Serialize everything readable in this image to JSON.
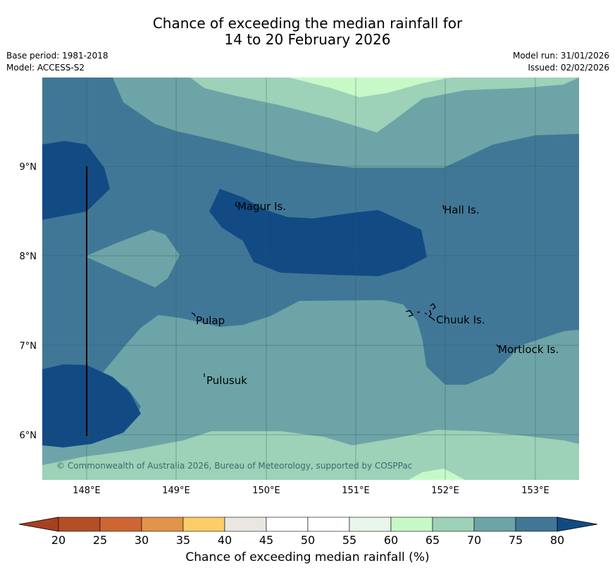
{
  "header": {
    "title_line1": "Chance of exceeding the median rainfall for",
    "title_line2": "14 to 20 February 2026",
    "base_period": "Base period: 1981-2018",
    "model": "Model: ACCESS-S2",
    "model_run": "Model run: 31/01/2026",
    "issued": "Issued: 02/02/2026"
  },
  "map": {
    "lon_ticks": [
      "148°E",
      "149°E",
      "150°E",
      "151°E",
      "152°E",
      "153°E"
    ],
    "lat_ticks": [
      "9°N",
      "8°N",
      "7°N",
      "6°N"
    ],
    "places": {
      "magur": "Magur Is.",
      "hall": "Hall Is.",
      "pulap": "Pulap",
      "chuuk": "Chuuk Is.",
      "pulusuk": "Pulusuk",
      "mortlock": "Mortlock Is."
    },
    "copyright": "© Commonwealth of Australia 2026, Bureau of Meteorology, supported by COSPPac"
  },
  "colorbar": {
    "ticks": [
      "20",
      "25",
      "30",
      "35",
      "40",
      "45",
      "50",
      "55",
      "60",
      "65",
      "70",
      "75",
      "80"
    ],
    "colors": [
      "#a8401f",
      "#b34e26",
      "#cd6633",
      "#e1944a",
      "#fdcd67",
      "#eae7e3",
      "#ffffff",
      "#ffffff",
      "#e9f5e9",
      "#c7f9c8",
      "#9dd1b8",
      "#6da4a7",
      "#417796",
      "#124b84"
    ],
    "title": "Chance of exceeding median rainfall (%)"
  }
}
